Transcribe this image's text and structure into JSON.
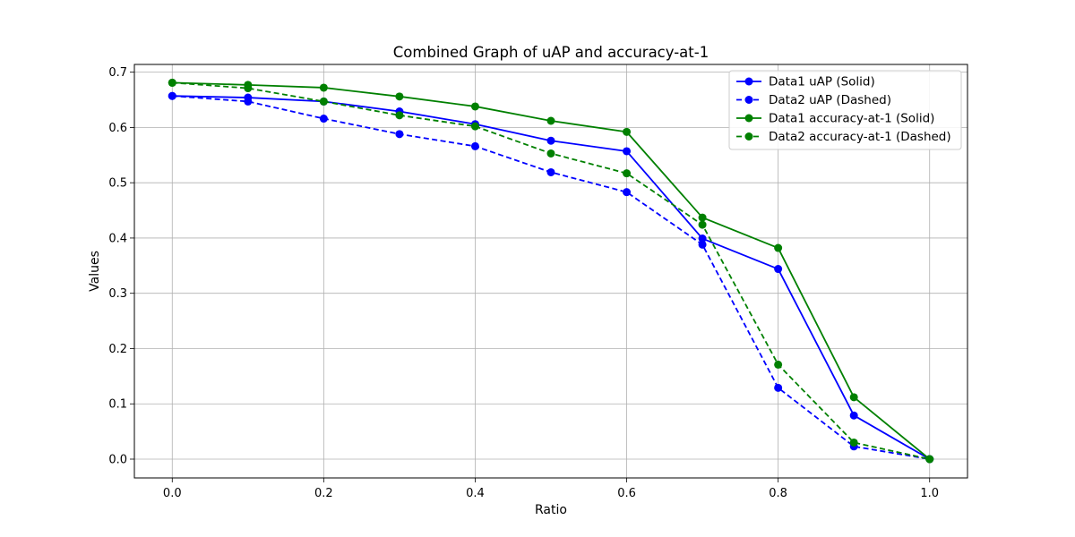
{
  "chart_data": {
    "type": "line",
    "title": "Combined Graph of uAP and accuracy-at-1",
    "xlabel": "Ratio",
    "ylabel": "Values",
    "x": [
      0.0,
      0.1,
      0.2,
      0.3,
      0.4,
      0.5,
      0.6,
      0.7,
      0.8,
      0.9,
      1.0
    ],
    "xlim": [
      -0.05,
      1.05
    ],
    "ylim": [
      -0.034,
      0.714
    ],
    "xticks": [
      "0.0",
      "0.2",
      "0.4",
      "0.6",
      "0.8",
      "1.0"
    ],
    "yticks": [
      "0.0",
      "0.1",
      "0.2",
      "0.3",
      "0.4",
      "0.5",
      "0.6",
      "0.7"
    ],
    "grid": true,
    "legend_position": "top-right",
    "series": [
      {
        "name": "Data1 uAP (Solid)",
        "color": "#0000ff",
        "style": "solid",
        "values": [
          0.657,
          0.654,
          0.647,
          0.629,
          0.606,
          0.576,
          0.557,
          0.399,
          0.344,
          0.079,
          0.0
        ]
      },
      {
        "name": "Data2 uAP (Dashed)",
        "color": "#0000ff",
        "style": "dashed",
        "values": [
          0.657,
          0.647,
          0.616,
          0.588,
          0.566,
          0.519,
          0.483,
          0.388,
          0.129,
          0.023,
          0.0
        ]
      },
      {
        "name": "Data1 accuracy-at-1 (Solid)",
        "color": "#008000",
        "style": "solid",
        "values": [
          0.681,
          0.677,
          0.672,
          0.656,
          0.638,
          0.612,
          0.592,
          0.437,
          0.382,
          0.112,
          0.0
        ]
      },
      {
        "name": "Data2 accuracy-at-1 (Dashed)",
        "color": "#008000",
        "style": "dashed",
        "values": [
          0.681,
          0.671,
          0.647,
          0.622,
          0.602,
          0.553,
          0.517,
          0.424,
          0.171,
          0.03,
          0.0
        ]
      }
    ]
  }
}
